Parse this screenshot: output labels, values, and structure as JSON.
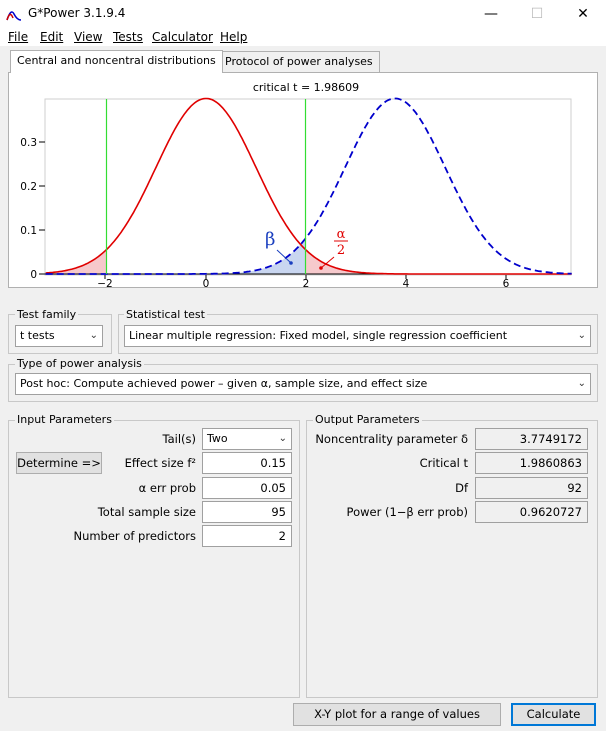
{
  "window": {
    "title": "G*Power 3.1.9.4",
    "min": "—",
    "max": "☐",
    "close": "✕"
  },
  "menu": [
    "File",
    "Edit",
    "View",
    "Tests",
    "Calculator",
    "Help"
  ],
  "tabs": [
    "Central and noncentral distributions",
    "Protocol of power analyses"
  ],
  "plot": {
    "critical_label": "critical t = 1.98609",
    "y_ticks": [
      "0.3",
      "0.2",
      "0.1",
      "0"
    ],
    "x_ticks": [
      "−2",
      "0",
      "2",
      "4",
      "6"
    ],
    "beta_label": "β",
    "alpha_num": "α",
    "alpha_den": "2",
    "colors": {
      "central": "#e00000",
      "noncentral": "#0000cc",
      "critical": "#33dd33"
    }
  },
  "test_family": {
    "label": "Test family",
    "value": "t tests"
  },
  "statistical_test": {
    "label": "Statistical test",
    "value": "Linear multiple regression: Fixed model, single regression coefficient"
  },
  "power_analysis": {
    "label": "Type of power analysis",
    "value": "Post hoc: Compute achieved power – given α, sample size, and effect size"
  },
  "input": {
    "label": "Input Parameters",
    "determine_button": "Determine =>",
    "tails_label": "Tail(s)",
    "tails_value": "Two",
    "effect_label": "Effect size f²",
    "effect_value": "0.15",
    "alpha_label": "α err prob",
    "alpha_value": "0.05",
    "n_label": "Total sample size",
    "n_value": "95",
    "pred_label": "Number of predictors",
    "pred_value": "2"
  },
  "output": {
    "label": "Output Parameters",
    "nc_label": "Noncentrality parameter δ",
    "nc_value": "3.7749172",
    "crit_label": "Critical t",
    "crit_value": "1.9860863",
    "df_label": "Df",
    "df_value": "92",
    "power_label": "Power (1−β err prob)",
    "power_value": "0.9620727"
  },
  "buttons": {
    "xy_plot": "X-Y plot for a range of values",
    "calculate": "Calculate"
  }
}
